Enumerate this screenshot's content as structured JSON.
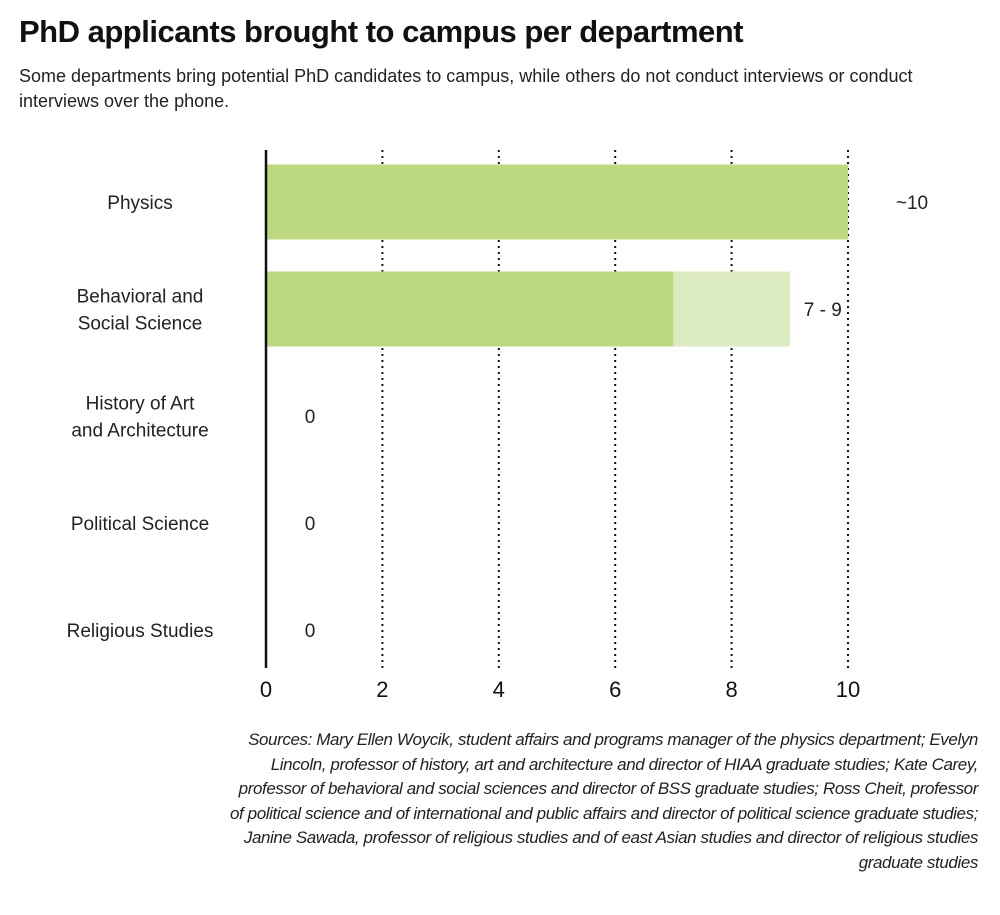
{
  "chart_data": {
    "type": "bar",
    "orientation": "horizontal",
    "title": "PhD applicants brought to campus per department",
    "subtitle": "Some departments bring potential PhD candidates to campus, while others do not conduct interviews or conduct interviews over the phone.",
    "categories": [
      "Physics",
      "Behavioral and Social Science",
      "History of Art and Architecture",
      "Political Science",
      "Religious Studies"
    ],
    "category_lines": [
      [
        "Physics"
      ],
      [
        "Behavioral and",
        "Social Science"
      ],
      [
        "History of Art",
        "and Architecture"
      ],
      [
        "Political Science"
      ],
      [
        "Religious Studies"
      ]
    ],
    "values_min": [
      10,
      7,
      0,
      0,
      0
    ],
    "values_max": [
      10,
      9,
      0,
      0,
      0
    ],
    "data_labels": [
      "~10",
      "7 - 9",
      "0",
      "0",
      "0"
    ],
    "xlim": [
      0,
      10
    ],
    "x_ticks": [
      "0",
      "2",
      "4",
      "6",
      "8",
      "10"
    ],
    "grid": "vertical dotted",
    "colors": {
      "solid": "#bdd980",
      "range": "#dcebc0",
      "grid": "#111111"
    }
  },
  "sources": [
    "Sources: Mary Ellen Woycik, student affairs and programs manager of the physics department; Evelyn",
    "Lincoln, professor of history, art and architecture and director of HIAA graduate studies; Kate Carey,",
    "professor of behavioral and social sciences and director of BSS graduate studies; Ross Cheit, professor",
    "of political science and of international and public affairs and director of political science graduate studies;",
    "Janine Sawada, professor of religious studies and of east Asian studies and director of religious studies",
    "graduate studies"
  ]
}
